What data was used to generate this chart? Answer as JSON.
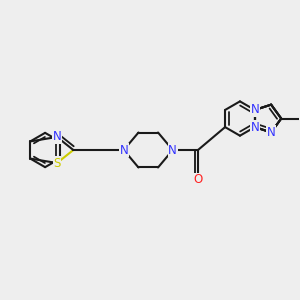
{
  "background_color": "#eeeeee",
  "bond_color": "#1a1a1a",
  "N_color": "#3333ff",
  "S_color": "#cccc00",
  "O_color": "#ff2222",
  "line_width": 1.5,
  "figsize": [
    3.0,
    3.0
  ],
  "dpi": 100,
  "xlim": [
    -4.0,
    4.5
  ],
  "ylim": [
    -2.2,
    2.8
  ]
}
